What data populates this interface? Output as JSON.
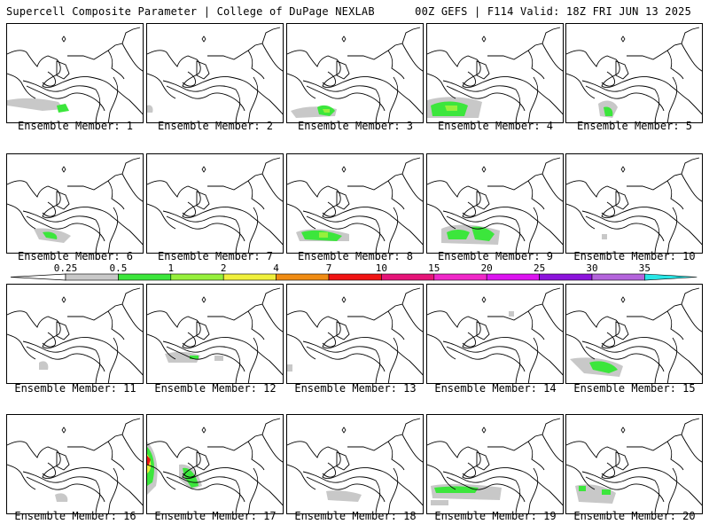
{
  "header": {
    "left_title": "Supercell Composite Parameter | College of DuPage NEXLAB",
    "right_title": "00Z GEFS | F114 Valid: 18Z FRI JUN 13 2025"
  },
  "member_prefix": "Ensemble Member:",
  "members": [
    {
      "label": "Ensemble Member: 1",
      "number": 1
    },
    {
      "label": "Ensemble Member: 2",
      "number": 2
    },
    {
      "label": "Ensemble Member: 3",
      "number": 3
    },
    {
      "label": "Ensemble Member: 4",
      "number": 4
    },
    {
      "label": "Ensemble Member: 5",
      "number": 5
    },
    {
      "label": "Ensemble Member: 6",
      "number": 6
    },
    {
      "label": "Ensemble Member: 7",
      "number": 7
    },
    {
      "label": "Ensemble Member: 8",
      "number": 8
    },
    {
      "label": "Ensemble Member: 9",
      "number": 9
    },
    {
      "label": "Ensemble Member: 10",
      "number": 10
    },
    {
      "label": "Ensemble Member: 11",
      "number": 11
    },
    {
      "label": "Ensemble Member: 12",
      "number": 12
    },
    {
      "label": "Ensemble Member: 13",
      "number": 13
    },
    {
      "label": "Ensemble Member: 14",
      "number": 14
    },
    {
      "label": "Ensemble Member: 15",
      "number": 15
    },
    {
      "label": "Ensemble Member: 16",
      "number": 16
    },
    {
      "label": "Ensemble Member: 17",
      "number": 17
    },
    {
      "label": "Ensemble Member: 18",
      "number": 18
    },
    {
      "label": "Ensemble Member: 19",
      "number": 19
    },
    {
      "label": "Ensemble Member: 20",
      "number": 20
    }
  ],
  "colorbar": {
    "labels": [
      "0.25",
      "0.5",
      "1",
      "2",
      "4",
      "7",
      "10",
      "15",
      "20",
      "25",
      "30",
      "35"
    ],
    "colors": [
      "#c8c8c8",
      "#3ce63c",
      "#96f03c",
      "#f0f03c",
      "#f08c14",
      "#f01414",
      "#e61478",
      "#f028c8",
      "#dc14f0",
      "#8c14dc",
      "#b464dc",
      "#28e6e6"
    ]
  }
}
